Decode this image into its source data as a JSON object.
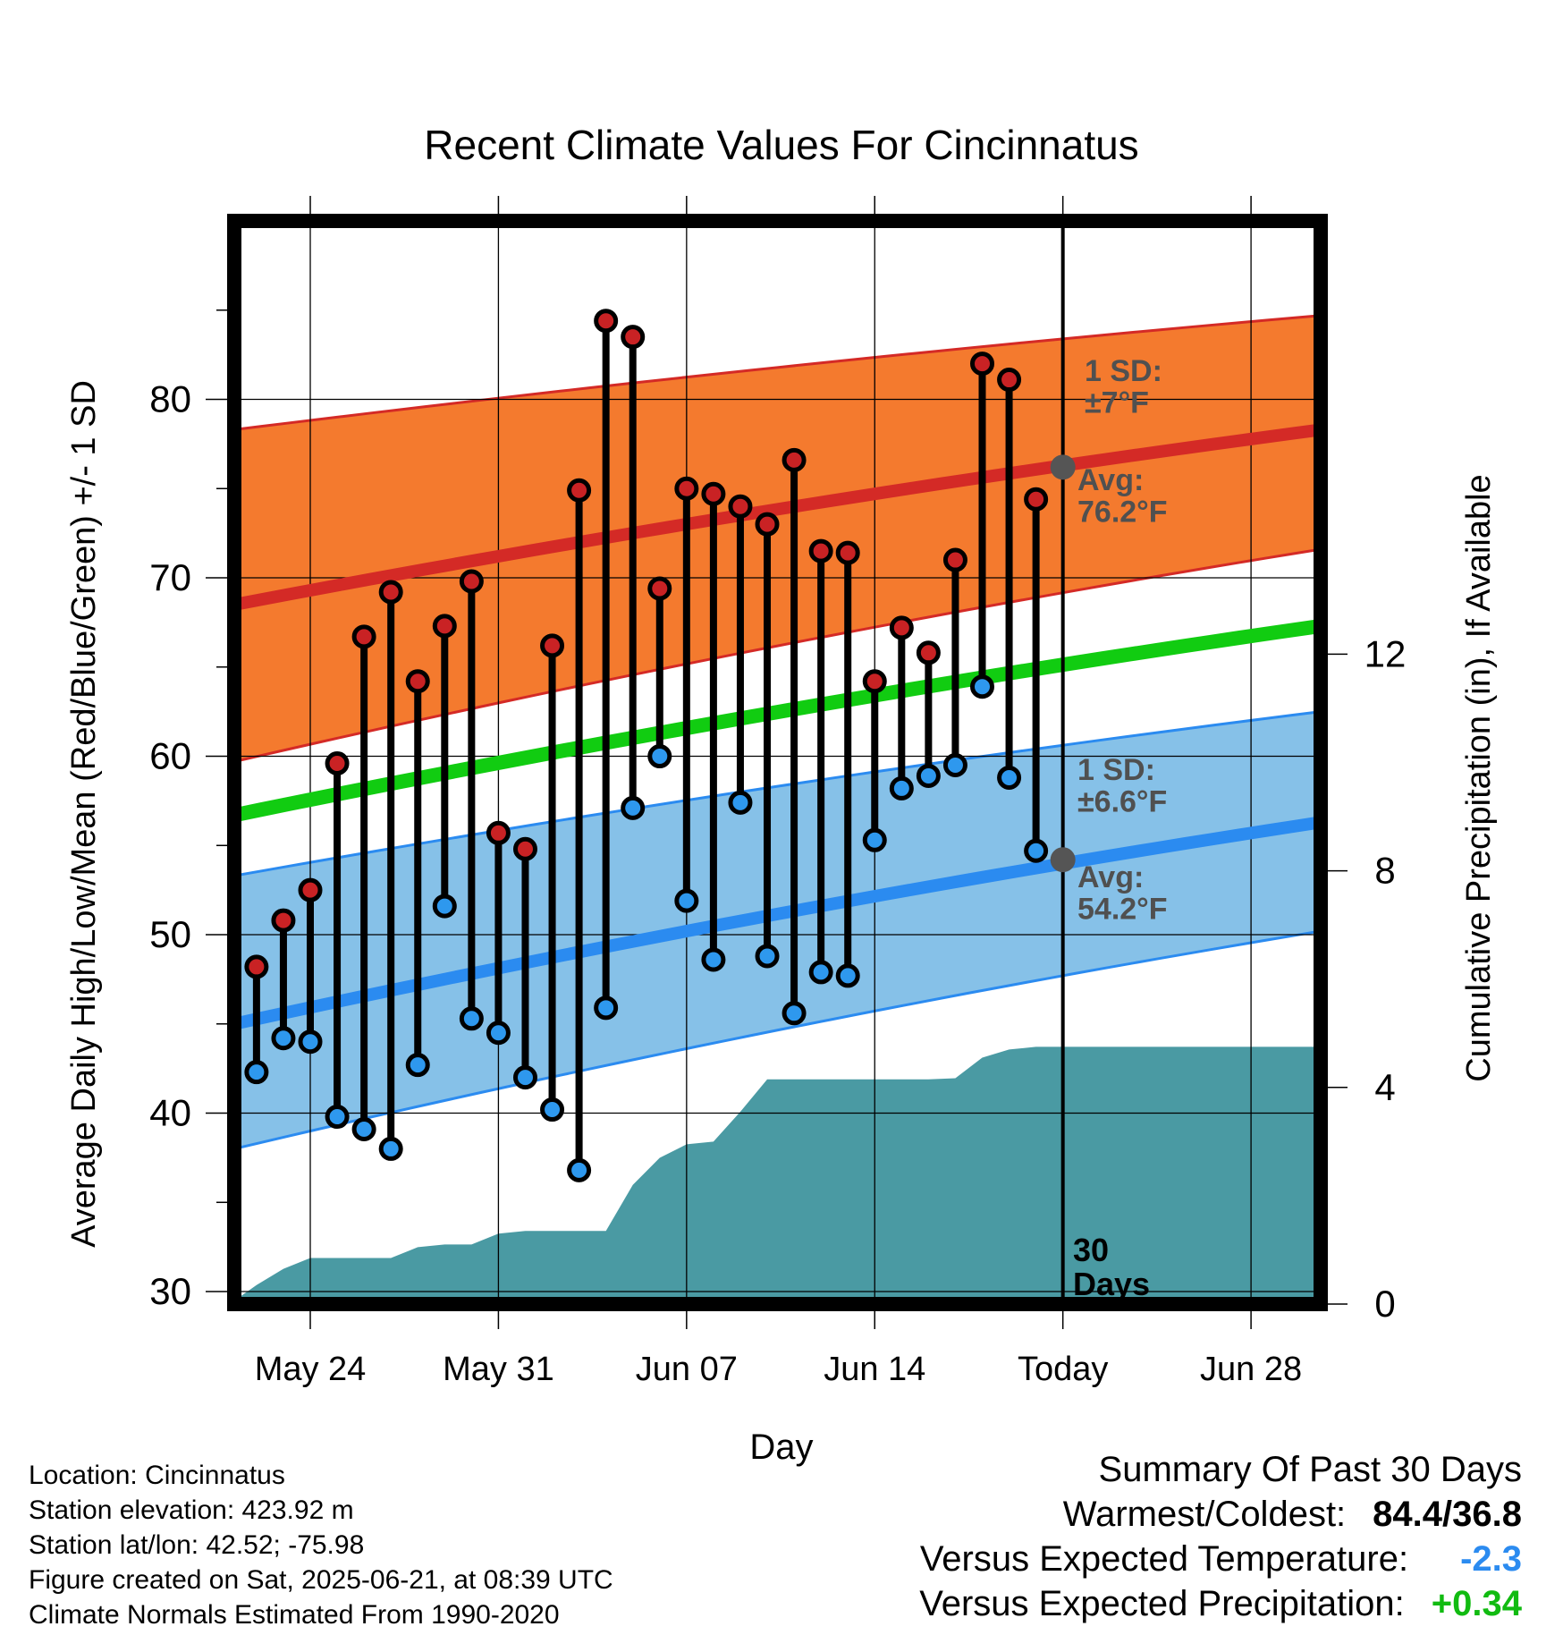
{
  "chart_data": {
    "type": "line",
    "title": "Recent Climate Values For Cincinnatus",
    "xlabel": "Day",
    "ylabel_left": "Average Daily High/Low/Mean (Red/Blue/Green) +/- 1 SD",
    "ylabel_right": "Cumulative Precipitation (in), If Available",
    "x_ticks": [
      "May 24",
      "May 31",
      "Jun 07",
      "Jun 14",
      "Today",
      "Jun 28"
    ],
    "y_left_ticks": [
      30,
      40,
      50,
      60,
      70,
      80
    ],
    "y_right_ticks": [
      0,
      4,
      8,
      12
    ],
    "ylim_left": [
      29.3,
      90
    ],
    "ylim_right": [
      0,
      20
    ],
    "days": [
      "May 22",
      "May 23",
      "May 24",
      "May 25",
      "May 26",
      "May 27",
      "May 28",
      "May 29",
      "May 30",
      "May 31",
      "Jun 01",
      "Jun 02",
      "Jun 03",
      "Jun 04",
      "Jun 05",
      "Jun 06",
      "Jun 07",
      "Jun 08",
      "Jun 09",
      "Jun 10",
      "Jun 11",
      "Jun 12",
      "Jun 13",
      "Jun 14",
      "Jun 15",
      "Jun 16",
      "Jun 17",
      "Jun 18",
      "Jun 19",
      "Jun 20"
    ],
    "daily_high": [
      48.2,
      50.8,
      52.5,
      59.6,
      66.7,
      69.2,
      64.2,
      67.3,
      69.8,
      55.7,
      54.8,
      66.2,
      74.9,
      84.4,
      83.5,
      69.4,
      75.0,
      74.7,
      74.0,
      73.0,
      76.6,
      71.5,
      71.4,
      64.2,
      67.2,
      65.8,
      71.0,
      82.0,
      81.1,
      74.4
    ],
    "daily_low": [
      42.3,
      44.2,
      44.0,
      39.8,
      39.1,
      38.0,
      42.7,
      51.6,
      45.3,
      44.5,
      42.0,
      40.2,
      36.8,
      45.9,
      57.1,
      60.0,
      51.9,
      48.6,
      57.4,
      48.8,
      45.6,
      47.9,
      47.7,
      55.3,
      58.2,
      58.9,
      59.5,
      63.9,
      58.8,
      54.7
    ],
    "normal_range_days": [
      "May 21",
      "Jul 02"
    ],
    "normal_high_avg": [
      68.5,
      78.3
    ],
    "normal_high_sd_upper": [
      78.3,
      84.7
    ],
    "normal_high_sd_lower": [
      59.7,
      71.6
    ],
    "normal_low_avg": [
      45.0,
      56.3
    ],
    "normal_low_sd_upper": [
      53.3,
      62.5
    ],
    "normal_low_sd_lower": [
      38.0,
      50.2
    ],
    "normal_mean": [
      56.7,
      67.3
    ],
    "cumulative_precip_days": [
      "May 21",
      "May 22",
      "May 23",
      "May 24",
      "May 25",
      "May 26",
      "May 27",
      "May 28",
      "May 29",
      "May 30",
      "May 31",
      "Jun 01",
      "Jun 02",
      "Jun 03",
      "Jun 04",
      "Jun 05",
      "Jun 06",
      "Jun 07",
      "Jun 08",
      "Jun 09",
      "Jun 10",
      "Jun 11",
      "Jun 12",
      "Jun 13",
      "Jun 14",
      "Jun 15",
      "Jun 16",
      "Jun 17",
      "Jun 18",
      "Jun 19",
      "Jun 20",
      "Today",
      "Jul 02"
    ],
    "cumulative_precip": [
      0,
      0.35,
      0.65,
      0.85,
      0.85,
      0.85,
      0.85,
      1.05,
      1.1,
      1.1,
      1.3,
      1.35,
      1.35,
      1.35,
      1.35,
      2.2,
      2.7,
      2.95,
      3.0,
      3.55,
      4.15,
      4.15,
      4.15,
      4.15,
      4.15,
      4.15,
      4.15,
      4.17,
      4.55,
      4.7,
      4.75,
      4.75,
      4.75
    ],
    "annotations": {
      "high_sd": [
        "1 SD:",
        "±7°F"
      ],
      "high_avg": [
        "Avg:",
        "76.2°F"
      ],
      "low_sd": [
        "1 SD:",
        "±6.6°F"
      ],
      "low_avg": [
        "Avg:",
        "54.2°F"
      ],
      "days_window": [
        "30",
        "Days"
      ],
      "today_high_avg": 76.2,
      "today_low_avg": 54.2
    },
    "grid": true,
    "colors": {
      "high_band": "#F47A2E",
      "high_line": "#D42A26",
      "low_band": "#86C1E8",
      "low_line": "#2B8BF0",
      "mean_line": "#11CC11",
      "precip": "#4A9AA3",
      "high_marker": "#C92224",
      "low_marker": "#2E98EE",
      "annotation": "#505050"
    }
  },
  "station_info": {
    "location": "Location: Cincinnatus",
    "elevation": "Station elevation: 423.92 m",
    "latlon": "Station lat/lon: 42.52; -75.98",
    "created": "Figure created on Sat, 2025-06-21, at 08:39 UTC",
    "normals": "Climate Normals Estimated From 1990-2020"
  },
  "summary": {
    "heading": "Summary Of Past 30 Days",
    "warm_cold_label": "Warmest/Coldest:",
    "warm_cold_value": "84.4/36.8",
    "temp_label": "Versus Expected Temperature:",
    "temp_value": "-2.3",
    "temp_color": "#2B8BF0",
    "precip_label": "Versus Expected Precipitation:",
    "precip_value": "+0.34",
    "precip_color": "#11BB11"
  }
}
